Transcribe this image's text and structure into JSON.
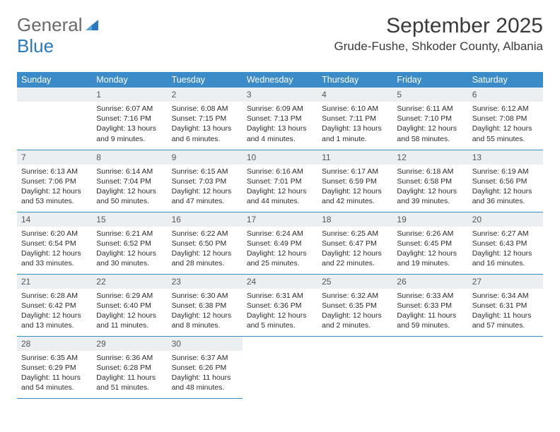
{
  "logo": {
    "part1": "General",
    "part2": "Blue"
  },
  "header": {
    "title": "September 2025",
    "location": "Grude-Fushe, Shkoder County, Albania"
  },
  "colors": {
    "header_bg": "#3b8bc9",
    "daynum_bg": "#eceff1",
    "rule": "#3b8bc9",
    "logo_blue": "#2a78bd"
  },
  "weekdays": [
    "Sunday",
    "Monday",
    "Tuesday",
    "Wednesday",
    "Thursday",
    "Friday",
    "Saturday"
  ],
  "weeks": [
    [
      {
        "n": "",
        "sr": "",
        "ss": "",
        "dl": ""
      },
      {
        "n": "1",
        "sr": "Sunrise: 6:07 AM",
        "ss": "Sunset: 7:16 PM",
        "dl": "Daylight: 13 hours and 9 minutes."
      },
      {
        "n": "2",
        "sr": "Sunrise: 6:08 AM",
        "ss": "Sunset: 7:15 PM",
        "dl": "Daylight: 13 hours and 6 minutes."
      },
      {
        "n": "3",
        "sr": "Sunrise: 6:09 AM",
        "ss": "Sunset: 7:13 PM",
        "dl": "Daylight: 13 hours and 4 minutes."
      },
      {
        "n": "4",
        "sr": "Sunrise: 6:10 AM",
        "ss": "Sunset: 7:11 PM",
        "dl": "Daylight: 13 hours and 1 minute."
      },
      {
        "n": "5",
        "sr": "Sunrise: 6:11 AM",
        "ss": "Sunset: 7:10 PM",
        "dl": "Daylight: 12 hours and 58 minutes."
      },
      {
        "n": "6",
        "sr": "Sunrise: 6:12 AM",
        "ss": "Sunset: 7:08 PM",
        "dl": "Daylight: 12 hours and 55 minutes."
      }
    ],
    [
      {
        "n": "7",
        "sr": "Sunrise: 6:13 AM",
        "ss": "Sunset: 7:06 PM",
        "dl": "Daylight: 12 hours and 53 minutes."
      },
      {
        "n": "8",
        "sr": "Sunrise: 6:14 AM",
        "ss": "Sunset: 7:04 PM",
        "dl": "Daylight: 12 hours and 50 minutes."
      },
      {
        "n": "9",
        "sr": "Sunrise: 6:15 AM",
        "ss": "Sunset: 7:03 PM",
        "dl": "Daylight: 12 hours and 47 minutes."
      },
      {
        "n": "10",
        "sr": "Sunrise: 6:16 AM",
        "ss": "Sunset: 7:01 PM",
        "dl": "Daylight: 12 hours and 44 minutes."
      },
      {
        "n": "11",
        "sr": "Sunrise: 6:17 AM",
        "ss": "Sunset: 6:59 PM",
        "dl": "Daylight: 12 hours and 42 minutes."
      },
      {
        "n": "12",
        "sr": "Sunrise: 6:18 AM",
        "ss": "Sunset: 6:58 PM",
        "dl": "Daylight: 12 hours and 39 minutes."
      },
      {
        "n": "13",
        "sr": "Sunrise: 6:19 AM",
        "ss": "Sunset: 6:56 PM",
        "dl": "Daylight: 12 hours and 36 minutes."
      }
    ],
    [
      {
        "n": "14",
        "sr": "Sunrise: 6:20 AM",
        "ss": "Sunset: 6:54 PM",
        "dl": "Daylight: 12 hours and 33 minutes."
      },
      {
        "n": "15",
        "sr": "Sunrise: 6:21 AM",
        "ss": "Sunset: 6:52 PM",
        "dl": "Daylight: 12 hours and 30 minutes."
      },
      {
        "n": "16",
        "sr": "Sunrise: 6:22 AM",
        "ss": "Sunset: 6:50 PM",
        "dl": "Daylight: 12 hours and 28 minutes."
      },
      {
        "n": "17",
        "sr": "Sunrise: 6:24 AM",
        "ss": "Sunset: 6:49 PM",
        "dl": "Daylight: 12 hours and 25 minutes."
      },
      {
        "n": "18",
        "sr": "Sunrise: 6:25 AM",
        "ss": "Sunset: 6:47 PM",
        "dl": "Daylight: 12 hours and 22 minutes."
      },
      {
        "n": "19",
        "sr": "Sunrise: 6:26 AM",
        "ss": "Sunset: 6:45 PM",
        "dl": "Daylight: 12 hours and 19 minutes."
      },
      {
        "n": "20",
        "sr": "Sunrise: 6:27 AM",
        "ss": "Sunset: 6:43 PM",
        "dl": "Daylight: 12 hours and 16 minutes."
      }
    ],
    [
      {
        "n": "21",
        "sr": "Sunrise: 6:28 AM",
        "ss": "Sunset: 6:42 PM",
        "dl": "Daylight: 12 hours and 13 minutes."
      },
      {
        "n": "22",
        "sr": "Sunrise: 6:29 AM",
        "ss": "Sunset: 6:40 PM",
        "dl": "Daylight: 12 hours and 11 minutes."
      },
      {
        "n": "23",
        "sr": "Sunrise: 6:30 AM",
        "ss": "Sunset: 6:38 PM",
        "dl": "Daylight: 12 hours and 8 minutes."
      },
      {
        "n": "24",
        "sr": "Sunrise: 6:31 AM",
        "ss": "Sunset: 6:36 PM",
        "dl": "Daylight: 12 hours and 5 minutes."
      },
      {
        "n": "25",
        "sr": "Sunrise: 6:32 AM",
        "ss": "Sunset: 6:35 PM",
        "dl": "Daylight: 12 hours and 2 minutes."
      },
      {
        "n": "26",
        "sr": "Sunrise: 6:33 AM",
        "ss": "Sunset: 6:33 PM",
        "dl": "Daylight: 11 hours and 59 minutes."
      },
      {
        "n": "27",
        "sr": "Sunrise: 6:34 AM",
        "ss": "Sunset: 6:31 PM",
        "dl": "Daylight: 11 hours and 57 minutes."
      }
    ],
    [
      {
        "n": "28",
        "sr": "Sunrise: 6:35 AM",
        "ss": "Sunset: 6:29 PM",
        "dl": "Daylight: 11 hours and 54 minutes."
      },
      {
        "n": "29",
        "sr": "Sunrise: 6:36 AM",
        "ss": "Sunset: 6:28 PM",
        "dl": "Daylight: 11 hours and 51 minutes."
      },
      {
        "n": "30",
        "sr": "Sunrise: 6:37 AM",
        "ss": "Sunset: 6:26 PM",
        "dl": "Daylight: 11 hours and 48 minutes."
      },
      {
        "n": "",
        "sr": "",
        "ss": "",
        "dl": ""
      },
      {
        "n": "",
        "sr": "",
        "ss": "",
        "dl": ""
      },
      {
        "n": "",
        "sr": "",
        "ss": "",
        "dl": ""
      },
      {
        "n": "",
        "sr": "",
        "ss": "",
        "dl": ""
      }
    ]
  ]
}
